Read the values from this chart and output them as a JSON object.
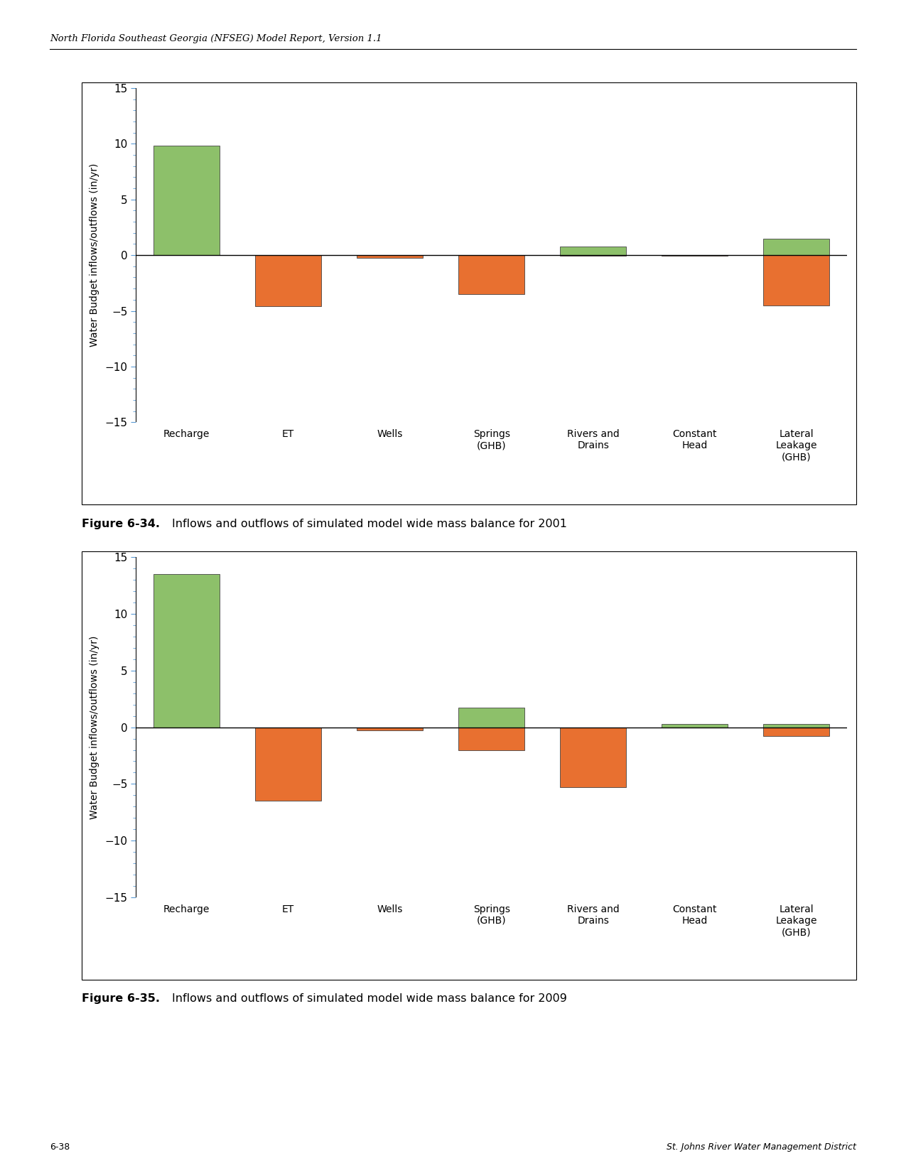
{
  "chart1": {
    "fig_label": "Figure 6-34.",
    "caption": "Inflows and outflows of simulated model wide mass balance for 2001",
    "categories": [
      "Recharge",
      "ET",
      "Wells",
      "Springs\n(GHB)",
      "Rivers and\nDrains",
      "Constant\nHead",
      "Lateral\nLeakage\n(GHB)"
    ],
    "green_values": [
      9.8,
      0.0,
      0.0,
      0.0,
      0.75,
      0.0,
      1.5
    ],
    "orange_values": [
      0.0,
      -4.6,
      -0.25,
      -3.5,
      -0.05,
      -0.05,
      -4.5
    ]
  },
  "chart2": {
    "fig_label": "Figure 6-35.",
    "caption": "Inflows and outflows of simulated model wide mass balance for 2009",
    "categories": [
      "Recharge",
      "ET",
      "Wells",
      "Springs\n(GHB)",
      "Rivers and\nDrains",
      "Constant\nHead",
      "Lateral\nLeakage\n(GHB)"
    ],
    "green_values": [
      13.5,
      0.0,
      0.0,
      1.7,
      0.0,
      0.3,
      0.3
    ],
    "orange_values": [
      0.0,
      -6.5,
      -0.25,
      -2.0,
      -5.3,
      -0.05,
      -0.8
    ]
  },
  "ylim": [
    -15,
    15
  ],
  "yticks": [
    -15,
    -10,
    -5,
    0,
    5,
    10,
    15
  ],
  "green_color": "#8DC06A",
  "orange_color": "#E87030",
  "ylabel": "Water Budget inflows/outflows (in/yr)",
  "header_text": "North Florida Southeast Georgia (NFSEG) Model Report, Version 1.1",
  "footer_left": "6-38",
  "footer_right": "St. Johns River Water Management District",
  "background_color": "#FFFFFF",
  "bar_width": 0.65,
  "page_width": 12.75,
  "page_height": 16.51
}
